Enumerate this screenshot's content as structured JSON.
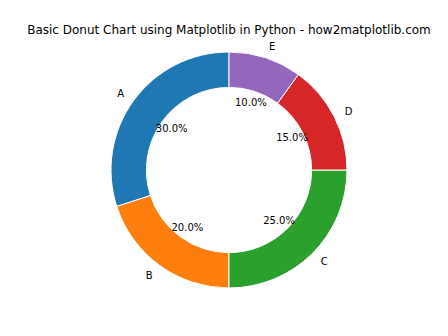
{
  "chart_data": {
    "type": "donut",
    "title": "Basic Donut Chart using Matplotlib in Python - how2matplotlib.com",
    "categories": [
      "A",
      "B",
      "C",
      "D",
      "E"
    ],
    "values": [
      30,
      20,
      25,
      15,
      10
    ],
    "value_labels": [
      "30.0%",
      "20.0%",
      "25.0%",
      "15.0%",
      "10.0%"
    ],
    "colors": [
      "#1f77b4",
      "#ff7f0e",
      "#2ca02c",
      "#d62728",
      "#9467bd"
    ],
    "data_labels": true
  }
}
